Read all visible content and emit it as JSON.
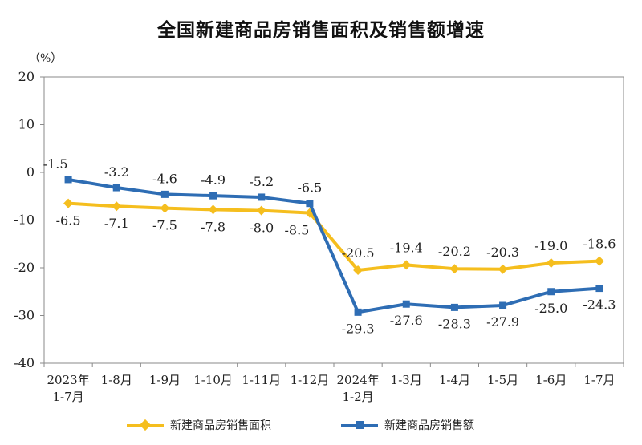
{
  "chart_data": {
    "type": "line",
    "title": "全国新建商品房销售面积及销售额增速",
    "ylabel": "（%）",
    "ylim": [
      -40,
      20
    ],
    "yticks": [
      "20",
      "10",
      "0",
      "-10",
      "-20",
      "-30",
      "-40"
    ],
    "categories": [
      [
        "2023年",
        "1-7月"
      ],
      [
        "1-8月"
      ],
      [
        "1-9月"
      ],
      [
        "1-10月"
      ],
      [
        "1-11月"
      ],
      [
        "1-12月"
      ],
      [
        "2024年",
        "1-2月"
      ],
      [
        "1-3月"
      ],
      [
        "1-4月"
      ],
      [
        "1-5月"
      ],
      [
        "1-6月"
      ],
      [
        "1-7月"
      ]
    ],
    "series": [
      {
        "name": "新建商品房销售面积",
        "color": "#F5BE1E",
        "marker": "diamond",
        "values": [
          -6.5,
          -7.1,
          -7.5,
          -7.8,
          -8.0,
          -8.5,
          -20.5,
          -19.4,
          -20.2,
          -20.3,
          -19.0,
          -18.6
        ],
        "labels": [
          "-6.5",
          "-7.1",
          "-7.5",
          "-7.8",
          "-8.0",
          "-8.5",
          "-20.5",
          "-19.4",
          "-20.2",
          "-20.3",
          "-19.0",
          "-18.6"
        ]
      },
      {
        "name": "新建商品房销售额",
        "color": "#2E6DB4",
        "marker": "square",
        "values": [
          -1.5,
          -3.2,
          -4.6,
          -4.9,
          -5.2,
          -6.5,
          -29.3,
          -27.6,
          -28.3,
          -27.9,
          -25.0,
          -24.3
        ],
        "labels": [
          "-1.5",
          "-3.2",
          "-4.6",
          "-4.9",
          "-5.2",
          "-6.5",
          "-29.3",
          "-27.6",
          "-28.3",
          "-27.9",
          "-25.0",
          "-24.3"
        ]
      }
    ],
    "legend_position": "bottom",
    "grid": false
  }
}
